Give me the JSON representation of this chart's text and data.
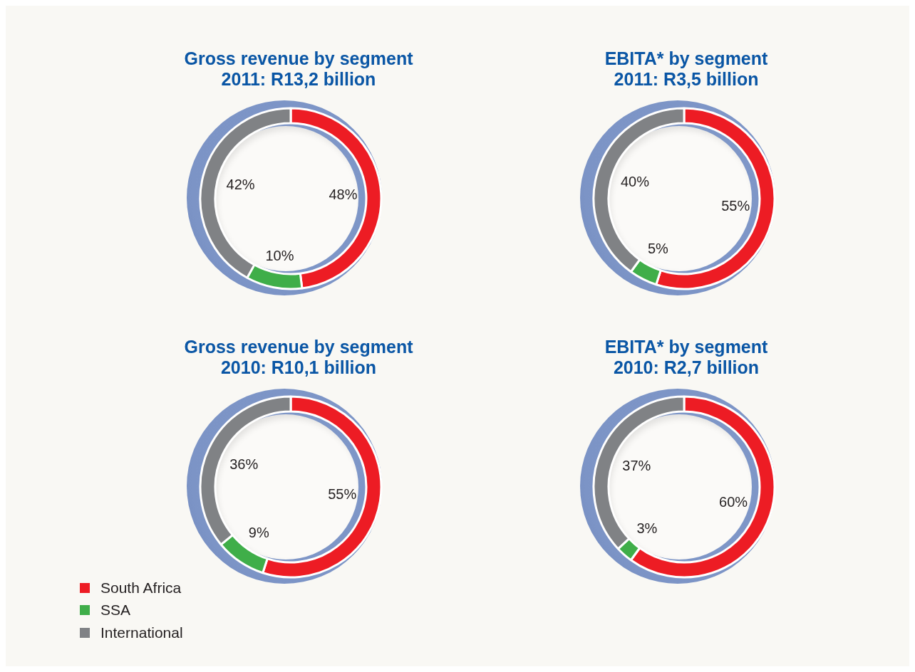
{
  "chart_data": [
    {
      "type": "donut",
      "title": "Gross revenue by segment",
      "subtitle": "2011: R13,2 billion",
      "categories": [
        null,
        null,
        null
      ],
      "values": [
        48,
        10,
        42
      ],
      "value_labels": [
        "48%",
        "10%",
        "42%"
      ],
      "colors": [
        "#ed1c24",
        "#3fae49",
        "#808285"
      ]
    },
    {
      "type": "donut",
      "title": "EBITA* by segment",
      "subtitle": "2011: R3,5 billion",
      "categories": [
        null,
        null,
        null
      ],
      "values": [
        55,
        5,
        40
      ],
      "value_labels": [
        "55%",
        "5%",
        "40%"
      ],
      "colors": [
        "#ed1c24",
        "#3fae49",
        "#808285"
      ]
    },
    {
      "type": "donut",
      "title": "Gross revenue by segment",
      "subtitle": "2010: R10,1 billion",
      "categories": [
        "South Africa",
        "SSA",
        "International"
      ],
      "values": [
        55,
        9,
        36
      ],
      "value_labels": [
        "55%",
        "9%",
        "36%"
      ],
      "colors": [
        "#ed1c24",
        "#3fae49",
        "#808285"
      ],
      "legend": "bottom left"
    },
    {
      "type": "donut",
      "title": "EBITA* by segment",
      "subtitle": "2010: R2,7 billion",
      "categories": [
        null,
        null,
        null
      ],
      "values": [
        60,
        3,
        37
      ],
      "value_labels": [
        "60%",
        "3%",
        "37%"
      ],
      "colors": [
        "#ed1c24",
        "#3fae49",
        "#808285"
      ]
    }
  ]
}
